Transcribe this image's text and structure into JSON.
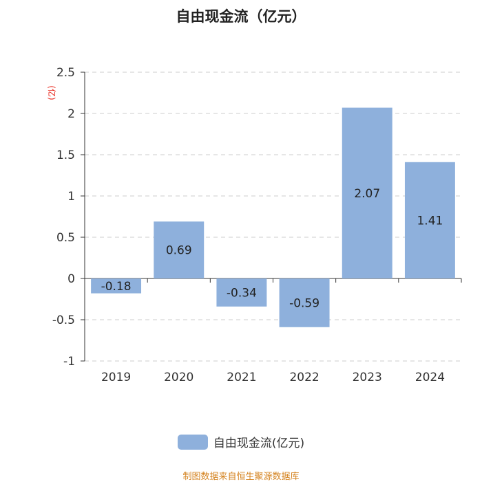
{
  "chart_data": {
    "type": "bar",
    "title": "自由现金流（亿元）",
    "ylabel": "(亿)",
    "categories": [
      "2019",
      "2020",
      "2021",
      "2022",
      "2023",
      "2024"
    ],
    "series": [
      {
        "name": "自由现金流(亿元)",
        "values": [
          -0.18,
          0.69,
          -0.34,
          -0.59,
          2.07,
          1.41
        ]
      }
    ],
    "data_labels": [
      "-0.18",
      "0.69",
      "-0.34",
      "-0.59",
      "2.07",
      "1.41"
    ],
    "ylim": [
      -1,
      2.5
    ],
    "yticks": [
      2.5,
      2,
      1.5,
      1,
      0.5,
      0,
      -0.5,
      -1
    ],
    "ytick_labels": [
      "2.5",
      "2",
      "1.5",
      "1",
      "0.5",
      "0",
      "-0.5",
      "-1"
    ],
    "grid": true,
    "legend_position": "bottom",
    "colors": {
      "bar": "#8eb0dc",
      "ylabel": "#e8271c",
      "grid": "#cccccc",
      "axis": "#333333"
    }
  },
  "footer": {
    "source": "制图数据来自恒生聚源数据库",
    "color": "#d4821e"
  }
}
